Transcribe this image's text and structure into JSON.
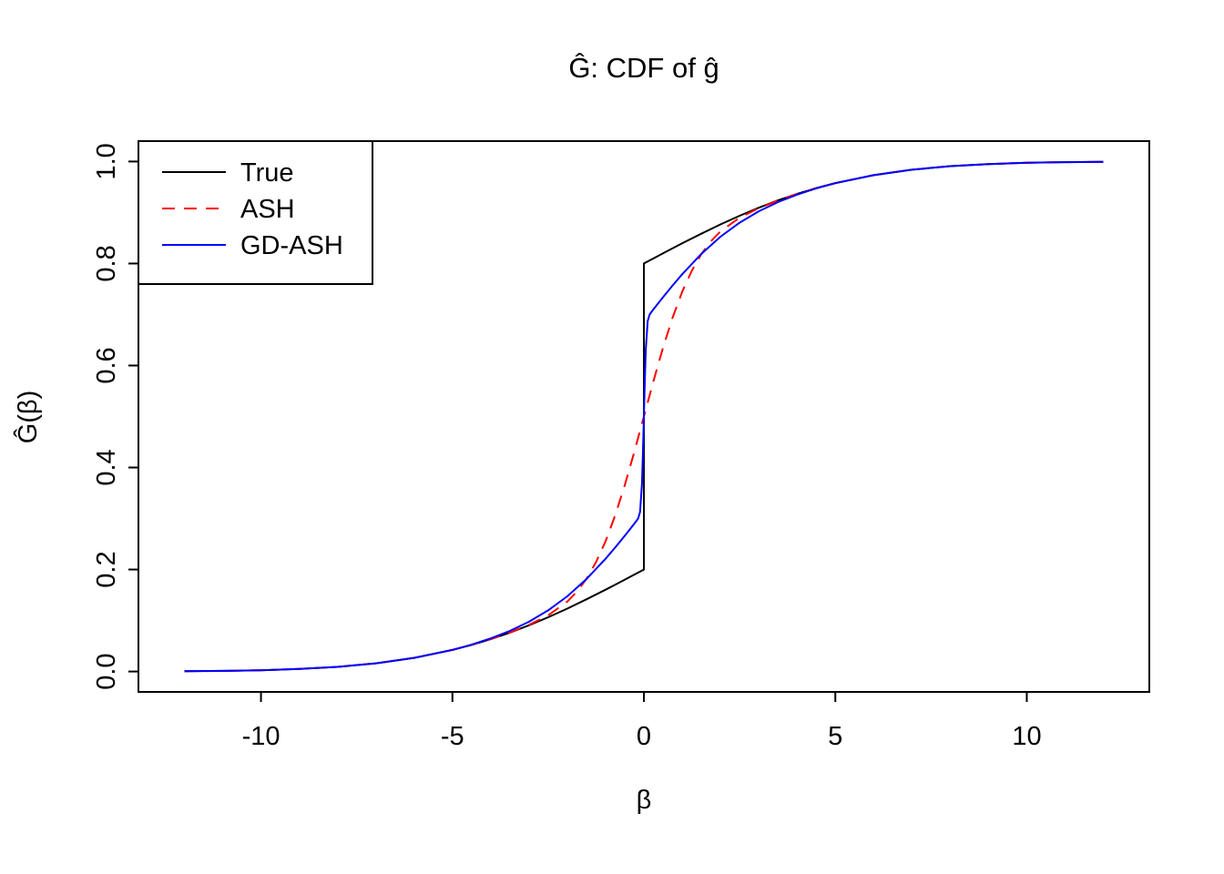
{
  "page": {
    "background_color": "#ffffff"
  },
  "chart_data": {
    "type": "line",
    "title": "Ĝ: CDF of ĝ",
    "xlabel": "β",
    "ylabel": "Ĝ(β)",
    "xlim": [
      -13.2,
      13.2
    ],
    "ylim": [
      -0.04,
      1.04
    ],
    "grid": false,
    "x_ticks": [
      {
        "value": -10,
        "label": "-10"
      },
      {
        "value": -5,
        "label": "-5"
      },
      {
        "value": 0,
        "label": "0"
      },
      {
        "value": 5,
        "label": "5"
      },
      {
        "value": 10,
        "label": "10"
      }
    ],
    "y_ticks": [
      {
        "value": 0.0,
        "label": "0.0"
      },
      {
        "value": 0.2,
        "label": "0.2"
      },
      {
        "value": 0.4,
        "label": "0.4"
      },
      {
        "value": 0.6,
        "label": "0.6"
      },
      {
        "value": 0.8,
        "label": "0.8"
      },
      {
        "value": 1.0,
        "label": "1.0"
      }
    ],
    "legend": {
      "position": "topleft",
      "entries": [
        {
          "label": "True",
          "color": "#000000",
          "dash": "solid"
        },
        {
          "label": "ASH",
          "color": "#FF0000",
          "dash": "dashed"
        },
        {
          "label": "GD-ASH",
          "color": "#0000FF",
          "dash": "solid"
        }
      ]
    },
    "series": [
      {
        "name": "True",
        "color": "#000000",
        "dash": "solid",
        "note": "point mass at 0: CDF jumps from 0.2 to 0.8",
        "x": [
          -12,
          -11,
          -10,
          -9,
          -8,
          -7,
          -6,
          -5,
          -4.5,
          -4,
          -3.5,
          -3,
          -2.5,
          -2,
          -1.5,
          -1,
          -0.75,
          -0.5,
          -0.25,
          0,
          0,
          0.25,
          0.5,
          0.75,
          1,
          1.5,
          2,
          2.5,
          3,
          3.5,
          4,
          4.5,
          5,
          6,
          7,
          8,
          9,
          10,
          11,
          12
        ],
        "y": [
          0.0005,
          0.0012,
          0.0025,
          0.0049,
          0.0091,
          0.016,
          0.0267,
          0.0423,
          0.0521,
          0.0635,
          0.0763,
          0.0907,
          0.1064,
          0.1234,
          0.1415,
          0.1605,
          0.1703,
          0.1801,
          0.1901,
          0.2,
          0.8,
          0.8099,
          0.8199,
          0.8297,
          0.8395,
          0.8585,
          0.8766,
          0.8936,
          0.9093,
          0.9237,
          0.9365,
          0.9479,
          0.9577,
          0.9733,
          0.984,
          0.9909,
          0.9951,
          0.9975,
          0.9988,
          0.9995
        ]
      },
      {
        "name": "ASH",
        "color": "#FF0000",
        "dash": "dashed",
        "x": [
          -12,
          -11,
          -10,
          -9,
          -8,
          -7,
          -6,
          -5,
          -4.5,
          -4,
          -3.5,
          -3,
          -2.5,
          -2,
          -1.75,
          -1.5,
          -1.25,
          -1,
          -0.75,
          -0.5,
          -0.25,
          0,
          0.25,
          0.5,
          0.75,
          1,
          1.25,
          1.5,
          1.75,
          2,
          2.5,
          3,
          3.5,
          4,
          4.5,
          5,
          6,
          7,
          8,
          9,
          10,
          11,
          12
        ],
        "y": [
          0.0005,
          0.0012,
          0.0025,
          0.0049,
          0.0091,
          0.016,
          0.0267,
          0.0423,
          0.0521,
          0.0635,
          0.0764,
          0.0915,
          0.1101,
          0.1371,
          0.1564,
          0.1816,
          0.2143,
          0.2557,
          0.3063,
          0.3652,
          0.4308,
          0.5,
          0.5692,
          0.6348,
          0.6937,
          0.7443,
          0.7857,
          0.8184,
          0.8436,
          0.8629,
          0.8899,
          0.9085,
          0.9235,
          0.9365,
          0.9479,
          0.9577,
          0.9733,
          0.984,
          0.9909,
          0.9951,
          0.9975,
          0.9988,
          0.9995
        ]
      },
      {
        "name": "GD-ASH",
        "color": "#0000FF",
        "dash": "solid",
        "x": [
          -12,
          -11,
          -10,
          -9,
          -8,
          -7,
          -6,
          -5,
          -4.5,
          -4,
          -3.5,
          -3,
          -2.5,
          -2,
          -1.5,
          -1,
          -0.75,
          -0.5,
          -0.4,
          -0.3,
          -0.2,
          -0.15,
          -0.1,
          -0.05,
          -0.025,
          0,
          0.025,
          0.05,
          0.1,
          0.15,
          0.2,
          0.3,
          0.4,
          0.5,
          0.75,
          1,
          1.5,
          2,
          2.5,
          3,
          3.5,
          4,
          4.5,
          5,
          6,
          7,
          8,
          9,
          10,
          11,
          12
        ],
        "y": [
          0.0005,
          0.0012,
          0.0025,
          0.0049,
          0.0091,
          0.0161,
          0.0267,
          0.0425,
          0.0527,
          0.0649,
          0.0796,
          0.0976,
          0.1199,
          0.1475,
          0.1812,
          0.2212,
          0.2432,
          0.2661,
          0.2756,
          0.2851,
          0.2947,
          0.3,
          0.3128,
          0.3682,
          0.4264,
          0.5,
          0.5736,
          0.6318,
          0.6872,
          0.7,
          0.7053,
          0.7149,
          0.7244,
          0.7339,
          0.7568,
          0.7788,
          0.8188,
          0.8525,
          0.8801,
          0.9024,
          0.9204,
          0.9351,
          0.9473,
          0.9575,
          0.9733,
          0.9839,
          0.9909,
          0.9951,
          0.9975,
          0.9988,
          0.9995
        ]
      }
    ]
  }
}
